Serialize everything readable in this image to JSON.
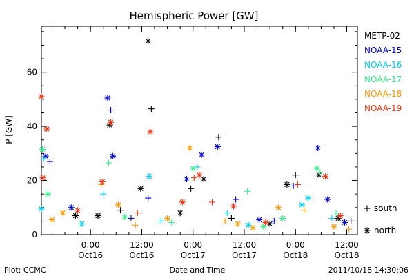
{
  "chart_data": {
    "type": "scatter",
    "title": "Hemispheric Power [GW]",
    "ylabel": "P [GW]",
    "xlabel": "Date and Time",
    "ylim": [
      0,
      77
    ],
    "xlim": [
      "2011-10-15 12:30",
      "2011-10-18 14:30"
    ],
    "yticks": [
      "0",
      "20",
      "40",
      "60"
    ],
    "xticks": [
      {
        "time": "2011-10-16 00:00",
        "label": "0:00",
        "sublabel": "Oct16"
      },
      {
        "time": "2011-10-16 12:00",
        "label": "12:00",
        "sublabel": "Oct16"
      },
      {
        "time": "2011-10-17 00:00",
        "label": "0:00",
        "sublabel": "Oct17"
      },
      {
        "time": "2011-10-17 12:00",
        "label": "12:00",
        "sublabel": "Oct17"
      },
      {
        "time": "2011-10-18 00:00",
        "label": "0:00",
        "sublabel": "Oct18"
      },
      {
        "time": "2011-10-18 12:00",
        "label": "12:00",
        "sublabel": "Oct18"
      }
    ],
    "legend": [
      "METP-02",
      "NOAA-15",
      "NOAA-16",
      "NOAA-17",
      "NOAA-18",
      "NOAA-19"
    ],
    "series": [
      {
        "name": "METP-02",
        "color": "#000000",
        "points": [
          {
            "x": "2011-10-16 04:30",
            "y": 40.5,
            "m": "north"
          },
          {
            "x": "2011-10-16 13:30",
            "y": 71.5,
            "m": "north"
          },
          {
            "x": "2011-10-16 14:15",
            "y": 46.5,
            "m": "south"
          },
          {
            "x": "2011-10-16 11:45",
            "y": 17.0,
            "m": "north"
          },
          {
            "x": "2011-10-16 01:45",
            "y": 7.0,
            "m": "north"
          },
          {
            "x": "2011-10-17 06:00",
            "y": 36.0,
            "m": "south"
          },
          {
            "x": "2011-10-16 23:30",
            "y": 17.0,
            "m": "south"
          },
          {
            "x": "2011-10-17 02:30",
            "y": 20.5,
            "m": "north"
          },
          {
            "x": "2011-10-18 00:00",
            "y": 22.0,
            "m": "south"
          },
          {
            "x": "2011-10-18 05:30",
            "y": 22.0,
            "m": "north"
          },
          {
            "x": "2011-10-17 22:00",
            "y": 18.5,
            "m": "north"
          },
          {
            "x": "2011-10-16 21:00",
            "y": 8.0,
            "m": "north"
          },
          {
            "x": "2011-10-17 09:00",
            "y": 6.0,
            "m": "south"
          },
          {
            "x": "2011-10-17 18:00",
            "y": 4.0,
            "m": "north"
          },
          {
            "x": "2011-10-18 10:00",
            "y": 6.0,
            "m": "north"
          },
          {
            "x": "2011-10-18 13:00",
            "y": 5.0,
            "m": "south"
          },
          {
            "x": "2011-10-15 20:30",
            "y": 7.0,
            "m": "north"
          },
          {
            "x": "2011-10-16 07:00",
            "y": 9.0,
            "m": "south"
          }
        ]
      },
      {
        "name": "NOAA-15",
        "color": "#0000cc",
        "points": [
          {
            "x": "2011-10-16 04:00",
            "y": 50.5,
            "m": "north"
          },
          {
            "x": "2011-10-16 04:45",
            "y": 46.0,
            "m": "south"
          },
          {
            "x": "2011-10-16 05:15",
            "y": 29.0,
            "m": "north"
          },
          {
            "x": "2011-10-15 13:30",
            "y": 29.0,
            "m": "north"
          },
          {
            "x": "2011-10-15 14:30",
            "y": 27.0,
            "m": "south"
          },
          {
            "x": "2011-10-16 22:30",
            "y": 20.5,
            "m": "north"
          },
          {
            "x": "2011-10-17 02:00",
            "y": 29.5,
            "m": "north"
          },
          {
            "x": "2011-10-17 05:45",
            "y": 32.5,
            "m": "north"
          },
          {
            "x": "2011-10-17 10:00",
            "y": 13.0,
            "m": "south"
          },
          {
            "x": "2011-10-18 05:15",
            "y": 32.0,
            "m": "north"
          },
          {
            "x": "2011-10-17 23:30",
            "y": 18.0,
            "m": "south"
          },
          {
            "x": "2011-10-18 07:30",
            "y": 13.0,
            "m": "north"
          },
          {
            "x": "2011-10-16 13:30",
            "y": 13.5,
            "m": "south"
          },
          {
            "x": "2011-10-15 19:30",
            "y": 10.0,
            "m": "north"
          },
          {
            "x": "2011-10-16 09:30",
            "y": 6.0,
            "m": "south"
          },
          {
            "x": "2011-10-17 15:30",
            "y": 5.5,
            "m": "north"
          },
          {
            "x": "2011-10-17 19:00",
            "y": 5.0,
            "m": "south"
          },
          {
            "x": "2011-10-18 11:30",
            "y": 4.5,
            "m": "north"
          }
        ]
      },
      {
        "name": "NOAA-16",
        "color": "#00ccee",
        "points": [
          {
            "x": "2011-10-15 13:00",
            "y": 28.0,
            "m": "south"
          },
          {
            "x": "2011-10-16 13:45",
            "y": 21.5,
            "m": "north"
          },
          {
            "x": "2011-10-17 01:00",
            "y": 25.0,
            "m": "south"
          },
          {
            "x": "2011-10-18 03:00",
            "y": 13.5,
            "m": "north"
          },
          {
            "x": "2011-10-16 03:00",
            "y": 15.0,
            "m": "south"
          },
          {
            "x": "2011-10-15 12:30",
            "y": 9.5,
            "m": "north"
          },
          {
            "x": "2011-10-16 16:30",
            "y": 5.0,
            "m": "south"
          },
          {
            "x": "2011-10-17 13:00",
            "y": 3.5,
            "m": "north"
          },
          {
            "x": "2011-10-18 08:30",
            "y": 6.0,
            "m": "south"
          },
          {
            "x": "2011-10-15 22:00",
            "y": 4.0,
            "m": "north"
          },
          {
            "x": "2011-10-17 08:00",
            "y": 8.0,
            "m": "south"
          },
          {
            "x": "2011-10-18 01:30",
            "y": 11.0,
            "m": "north"
          }
        ]
      },
      {
        "name": "NOAA-17",
        "color": "#33ee88",
        "points": [
          {
            "x": "2011-10-15 12:45",
            "y": 31.5,
            "m": "north"
          },
          {
            "x": "2011-10-16 04:15",
            "y": 26.5,
            "m": "south"
          },
          {
            "x": "2011-10-17 00:00",
            "y": 24.5,
            "m": "north"
          },
          {
            "x": "2011-10-17 12:45",
            "y": 16.0,
            "m": "south"
          },
          {
            "x": "2011-10-18 05:00",
            "y": 24.5,
            "m": "north"
          },
          {
            "x": "2011-10-18 05:45",
            "y": 23.0,
            "m": "south"
          },
          {
            "x": "2011-10-15 14:00",
            "y": 15.0,
            "m": "north"
          },
          {
            "x": "2011-10-16 08:00",
            "y": 6.5,
            "m": "north"
          },
          {
            "x": "2011-10-16 19:00",
            "y": 4.5,
            "m": "south"
          },
          {
            "x": "2011-10-17 16:30",
            "y": 3.0,
            "m": "north"
          },
          {
            "x": "2011-10-18 09:30",
            "y": 8.0,
            "m": "south"
          },
          {
            "x": "2011-10-17 21:00",
            "y": 6.0,
            "m": "north"
          }
        ]
      },
      {
        "name": "NOAA-18",
        "color": "#ff9900",
        "points": [
          {
            "x": "2011-10-15 15:00",
            "y": 5.5,
            "m": "north"
          },
          {
            "x": "2011-10-16 02:30",
            "y": 18.5,
            "m": "south"
          },
          {
            "x": "2011-10-16 18:00",
            "y": 6.0,
            "m": "north"
          },
          {
            "x": "2011-10-16 23:15",
            "y": 32.0,
            "m": "north"
          },
          {
            "x": "2011-10-17 07:30",
            "y": 5.0,
            "m": "south"
          },
          {
            "x": "2011-10-17 14:00",
            "y": 2.5,
            "m": "north"
          },
          {
            "x": "2011-10-17 20:00",
            "y": 10.0,
            "m": "north"
          },
          {
            "x": "2011-10-18 02:00",
            "y": 9.0,
            "m": "south"
          },
          {
            "x": "2011-10-18 09:00",
            "y": 3.0,
            "m": "north"
          },
          {
            "x": "2011-10-16 10:30",
            "y": 3.5,
            "m": "south"
          },
          {
            "x": "2011-10-17 10:30",
            "y": 4.0,
            "m": "north"
          },
          {
            "x": "2011-10-15 17:30",
            "y": 8.0,
            "m": "north"
          },
          {
            "x": "2011-10-18 12:30",
            "y": 2.0,
            "m": "south"
          },
          {
            "x": "2011-10-16 06:30",
            "y": 11.0,
            "m": "north"
          }
        ]
      },
      {
        "name": "NOAA-19",
        "color": "#ee3311",
        "points": [
          {
            "x": "2011-10-15 12:30",
            "y": 51.0,
            "m": "north"
          },
          {
            "x": "2011-10-15 13:45",
            "y": 39.0,
            "m": "north"
          },
          {
            "x": "2011-10-15 12:50",
            "y": 21.0,
            "m": "north"
          },
          {
            "x": "2011-10-16 04:45",
            "y": 41.5,
            "m": "north"
          },
          {
            "x": "2011-10-16 14:00",
            "y": 38.0,
            "m": "north"
          },
          {
            "x": "2011-10-16 02:45",
            "y": 19.5,
            "m": "north"
          },
          {
            "x": "2011-10-17 01:30",
            "y": 22.0,
            "m": "north"
          },
          {
            "x": "2011-10-17 00:15",
            "y": 21.0,
            "m": "south"
          },
          {
            "x": "2011-10-18 07:00",
            "y": 21.5,
            "m": "north"
          },
          {
            "x": "2011-10-18 00:30",
            "y": 18.5,
            "m": "south"
          },
          {
            "x": "2011-10-16 21:30",
            "y": 12.0,
            "m": "north"
          },
          {
            "x": "2011-10-17 04:30",
            "y": 12.0,
            "m": "south"
          },
          {
            "x": "2011-10-17 09:30",
            "y": 10.5,
            "m": "north"
          },
          {
            "x": "2011-10-15 21:00",
            "y": 9.0,
            "m": "north"
          },
          {
            "x": "2011-10-16 11:00",
            "y": 8.0,
            "m": "south"
          },
          {
            "x": "2011-10-17 17:00",
            "y": 4.5,
            "m": "north"
          },
          {
            "x": "2011-10-18 10:30",
            "y": 7.0,
            "m": "north"
          }
        ]
      }
    ],
    "marker_key": [
      {
        "symbol": "+",
        "label": "south"
      },
      {
        "symbol": "*",
        "label": "north"
      }
    ]
  },
  "footer": {
    "left": "Plot: CCMC",
    "center": "Date and Time",
    "right": "2011/10/18 14:30:06"
  }
}
